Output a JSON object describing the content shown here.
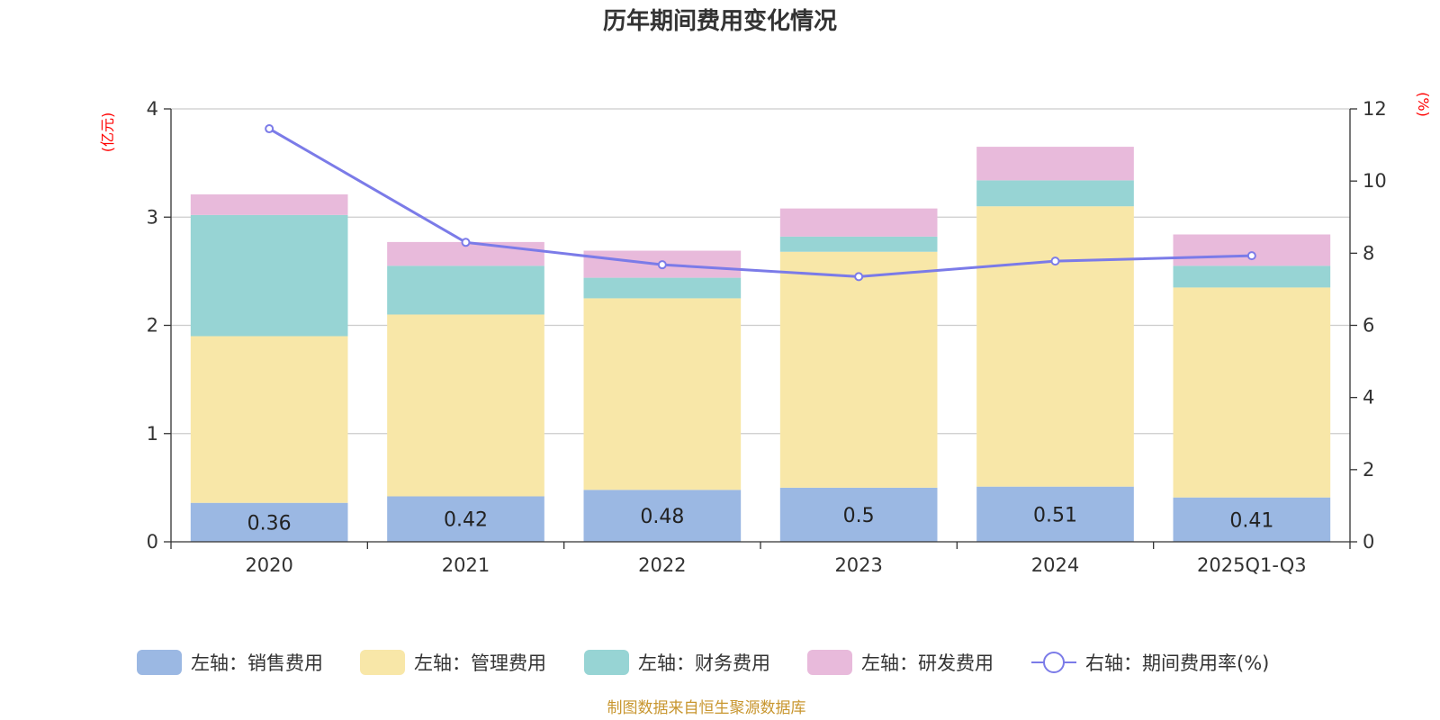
{
  "chart_data": {
    "type": "bar",
    "stacked": true,
    "title": "历年期间费用变化情况",
    "categories": [
      "2020",
      "2021",
      "2022",
      "2023",
      "2024",
      "2025Q1-Q3"
    ],
    "left_axis": {
      "unit": "(亿元)",
      "ylim": [
        0,
        4
      ],
      "ticks": [
        "0",
        "1",
        "2",
        "3",
        "4"
      ]
    },
    "right_axis": {
      "unit": "(%)",
      "ylim": [
        0,
        12
      ],
      "ticks": [
        "0",
        "2",
        "4",
        "6",
        "8",
        "10",
        "12"
      ]
    },
    "series": [
      {
        "name": "左轴：销售费用",
        "type": "bar",
        "axis": "left",
        "color": "#9bb8e3",
        "values": [
          0.36,
          0.42,
          0.48,
          0.5,
          0.51,
          0.41
        ],
        "labels": [
          "0.36",
          "0.42",
          "0.48",
          "0.5",
          "0.51",
          "0.41"
        ]
      },
      {
        "name": "左轴：管理费用",
        "type": "bar",
        "axis": "left",
        "color": "#f8e7a8",
        "values": [
          1.54,
          1.68,
          1.77,
          2.18,
          2.59,
          1.94
        ]
      },
      {
        "name": "左轴：财务费用",
        "type": "bar",
        "axis": "left",
        "color": "#97d4d4",
        "values": [
          1.12,
          0.45,
          0.19,
          0.14,
          0.24,
          0.2
        ]
      },
      {
        "name": "左轴：研发费用",
        "type": "bar",
        "axis": "left",
        "color": "#e8badb",
        "values": [
          0.19,
          0.22,
          0.25,
          0.26,
          0.31,
          0.29
        ]
      },
      {
        "name": "右轴：期间费用率(%)",
        "type": "line",
        "axis": "right",
        "color": "#7b7be8",
        "values": [
          11.45,
          8.3,
          7.68,
          7.35,
          7.78,
          7.93
        ]
      }
    ],
    "source": "制图数据来自恒生聚源数据库"
  }
}
